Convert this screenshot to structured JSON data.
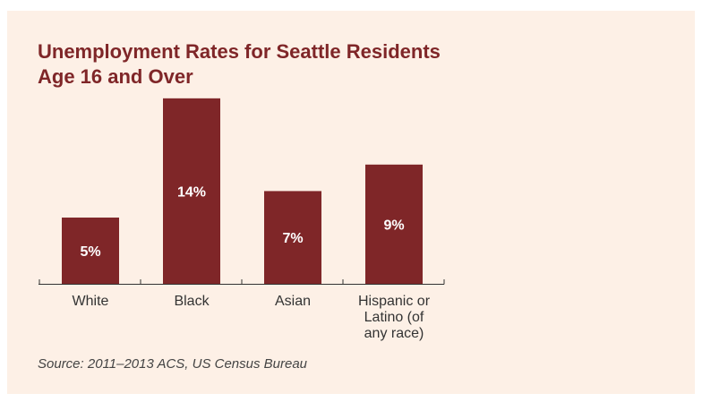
{
  "chart_data": {
    "type": "bar",
    "title": "Unemployment Rates for Seattle Residents Age 16 and Over",
    "categories": [
      "White",
      "Black",
      "Asian",
      "Hispanic or Latino (of any race)"
    ],
    "category_lines": [
      [
        "White"
      ],
      [
        "Black"
      ],
      [
        "Asian"
      ],
      [
        "Hispanic or",
        "Latino (of",
        "any race)"
      ]
    ],
    "values": [
      5,
      14,
      7,
      9
    ],
    "value_labels": [
      "5%",
      "14%",
      "7%",
      "9%"
    ],
    "ylim": [
      0,
      14.8
    ],
    "grid": false,
    "bar_color": "#7f2628",
    "source": "Source: 2011–2013 ACS, US Census Bureau"
  },
  "colors": {
    "panel_background": "#fdf0e6",
    "accent": "#7f2628"
  }
}
